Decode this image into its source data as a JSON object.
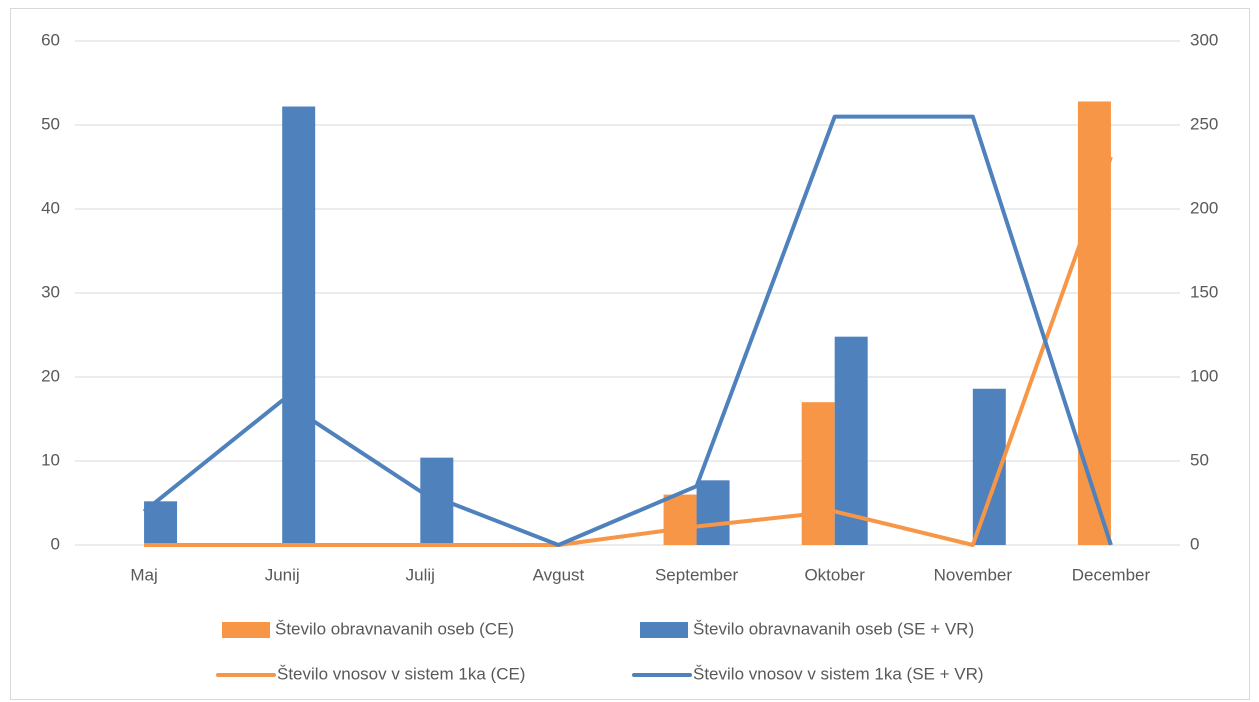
{
  "chart_data": {
    "type": "combo",
    "categories": [
      "Maj",
      "Junij",
      "Julij",
      "Avgust",
      "September",
      "Oktober",
      "November",
      "December"
    ],
    "series": [
      {
        "name": "Število obravnavanih oseb (CE)",
        "type": "bar",
        "color": "#f79646",
        "axis": "y",
        "values": [
          0,
          0,
          0,
          0,
          6,
          17,
          0,
          52.8
        ]
      },
      {
        "name": "Število obravnavanih oseb (SE + VR)",
        "type": "bar",
        "color": "#4f81bd",
        "axis": "y",
        "values": [
          5.2,
          52.2,
          10.4,
          0,
          7.7,
          24.8,
          18.6,
          0
        ]
      },
      {
        "name": "Število vnosov v sistem 1ka (CE)",
        "type": "line",
        "color": "#f79646",
        "axis": "y2",
        "values": [
          0,
          0,
          0,
          0,
          11,
          20,
          0,
          231
        ]
      },
      {
        "name": "Število vnosov v sistem 1ka (SE + VR)",
        "type": "line",
        "color": "#4f81bd",
        "axis": "y2",
        "values": [
          20,
          86,
          32,
          0,
          35,
          255,
          255,
          0
        ]
      }
    ],
    "ylim": [
      0,
      60
    ],
    "yticks": [
      0,
      10,
      20,
      30,
      40,
      50,
      60
    ],
    "y2lim": [
      0,
      300
    ],
    "y2ticks": [
      0,
      50,
      100,
      150,
      200,
      250,
      300
    ],
    "grid": true,
    "legend": "bottom"
  }
}
